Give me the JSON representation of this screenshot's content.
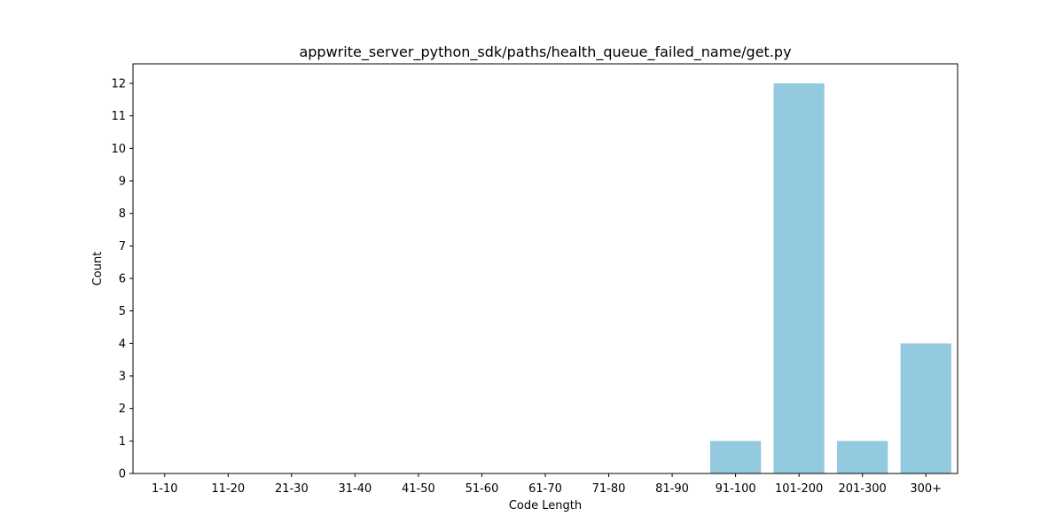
{
  "chart_data": {
    "type": "bar",
    "title": "appwrite_server_python_sdk/paths/health_queue_failed_name/get.py",
    "xlabel": "Code Length",
    "ylabel": "Count",
    "categories": [
      "1-10",
      "11-20",
      "21-30",
      "31-40",
      "41-50",
      "51-60",
      "61-70",
      "71-80",
      "81-90",
      "91-100",
      "101-200",
      "201-300",
      "300+"
    ],
    "values": [
      0,
      0,
      0,
      0,
      0,
      0,
      0,
      0,
      0,
      1,
      12,
      1,
      4
    ],
    "ylim": [
      0,
      12.6
    ],
    "yticks": [
      0,
      1,
      2,
      3,
      4,
      5,
      6,
      7,
      8,
      9,
      10,
      11,
      12
    ],
    "grid": false,
    "bar_color": "#92c9de"
  }
}
